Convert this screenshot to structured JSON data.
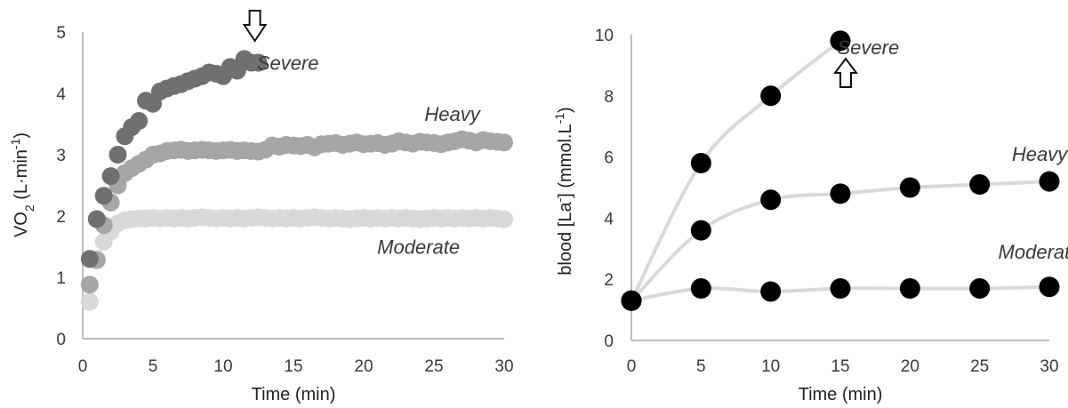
{
  "chart_data": [
    {
      "type": "scatter",
      "title": "",
      "xlabel": "Time (min)",
      "ylabel_main": "VO",
      "ylabel_sub": "2",
      "ylabel_rest": " (L·min",
      "ylabel_sup": "-1",
      "ylabel_end": ")",
      "xlim": [
        0,
        30
      ],
      "ylim": [
        0,
        5
      ],
      "xticks": [
        0,
        5,
        10,
        15,
        20,
        25,
        30
      ],
      "yticks": [
        0,
        1,
        2,
        3,
        4,
        5
      ],
      "grid": false,
      "legend": "none",
      "annotation": "down-arrow-at-end-of-severe",
      "series": [
        {
          "name": "Moderate",
          "color": "#d9d9d9",
          "label_x": 23.9,
          "label_y": 1.5,
          "x": [
            0.5,
            1.0,
            1.5,
            2.0,
            2.5,
            3.0,
            3.5,
            4.0,
            4.5,
            5.0,
            5.5,
            6.0,
            6.5,
            7.0,
            7.5,
            8.0,
            8.5,
            9.0,
            9.5,
            10.0,
            10.5,
            11.0,
            11.5,
            12.0,
            12.5,
            13.0,
            13.5,
            14.0,
            14.5,
            15.0,
            15.5,
            16.0,
            16.5,
            17.0,
            17.5,
            18.0,
            18.5,
            19.0,
            19.5,
            20.0,
            20.5,
            21.0,
            21.5,
            22.0,
            22.5,
            23.0,
            23.5,
            24.0,
            24.5,
            25.0,
            25.5,
            26.0,
            26.5,
            27.0,
            27.5,
            28.0,
            28.5,
            29.0,
            29.5,
            30.0
          ],
          "y": [
            0.6,
            1.3,
            1.58,
            1.75,
            1.88,
            1.93,
            1.95,
            1.96,
            1.96,
            1.97,
            1.96,
            1.97,
            1.96,
            1.97,
            1.96,
            1.97,
            1.98,
            1.97,
            1.96,
            1.97,
            1.96,
            1.97,
            1.96,
            1.97,
            1.98,
            1.97,
            1.96,
            1.97,
            1.96,
            1.97,
            1.96,
            1.97,
            1.98,
            1.97,
            1.96,
            1.97,
            1.96,
            1.95,
            1.96,
            1.97,
            1.96,
            1.97,
            1.96,
            1.97,
            1.96,
            1.97,
            1.96,
            1.95,
            1.96,
            1.97,
            1.96,
            1.97,
            1.96,
            1.97,
            1.96,
            1.97,
            1.96,
            1.97,
            1.96,
            1.95
          ]
        },
        {
          "name": "Heavy",
          "color": "#a6a6a6",
          "label_x": 26.3,
          "label_y": 3.67,
          "x": [
            0.5,
            1.0,
            1.5,
            2.0,
            2.5,
            3.0,
            3.5,
            4.0,
            4.5,
            5.0,
            5.5,
            6.0,
            6.5,
            7.0,
            7.5,
            8.0,
            8.5,
            9.0,
            9.5,
            10.0,
            10.5,
            11.0,
            11.5,
            12.0,
            12.5,
            13.0,
            13.5,
            14.0,
            14.5,
            15.0,
            15.5,
            16.0,
            16.5,
            17.0,
            17.5,
            18.0,
            18.5,
            19.0,
            19.5,
            20.0,
            20.5,
            21.0,
            21.5,
            22.0,
            22.5,
            23.0,
            23.5,
            24.0,
            24.5,
            25.0,
            25.5,
            26.0,
            26.5,
            27.0,
            27.5,
            28.0,
            28.5,
            29.0,
            29.5,
            30.0
          ],
          "y": [
            0.88,
            1.28,
            1.85,
            2.22,
            2.5,
            2.7,
            2.78,
            2.85,
            2.92,
            3.0,
            3.02,
            3.06,
            3.07,
            3.08,
            3.06,
            3.07,
            3.08,
            3.07,
            3.06,
            3.07,
            3.08,
            3.06,
            3.07,
            3.06,
            3.05,
            3.08,
            3.15,
            3.13,
            3.16,
            3.15,
            3.14,
            3.16,
            3.12,
            3.17,
            3.18,
            3.19,
            3.16,
            3.18,
            3.2,
            3.17,
            3.18,
            3.19,
            3.16,
            3.18,
            3.22,
            3.2,
            3.18,
            3.21,
            3.2,
            3.19,
            3.17,
            3.2,
            3.22,
            3.25,
            3.23,
            3.2,
            3.24,
            3.22,
            3.21,
            3.2
          ]
        },
        {
          "name": "Severe",
          "color": "#707070",
          "label_x": 14.6,
          "label_y": 4.5,
          "x": [
            0.5,
            1.0,
            1.5,
            2.0,
            2.5,
            3.0,
            3.5,
            4.0,
            4.5,
            5.0,
            5.5,
            6.0,
            6.5,
            7.0,
            7.5,
            8.0,
            8.5,
            9.0,
            9.5,
            10.0,
            10.5,
            11.0,
            11.5,
            12.0,
            12.5
          ],
          "y": [
            1.3,
            1.95,
            2.33,
            2.65,
            3.0,
            3.3,
            3.45,
            3.55,
            3.88,
            3.83,
            4.03,
            4.08,
            4.12,
            4.15,
            4.2,
            4.24,
            4.28,
            4.34,
            4.32,
            4.28,
            4.43,
            4.37,
            4.56,
            4.5,
            4.5
          ]
        }
      ]
    },
    {
      "type": "line",
      "title": "",
      "xlabel": "Time (min)",
      "ylabel_main": "blood [La",
      "ylabel_sup1": "-",
      "ylabel_mid": "] (mmol.L",
      "ylabel_sup2": "-1",
      "ylabel_end": ")",
      "xlim": [
        0,
        30
      ],
      "ylim": [
        0,
        10
      ],
      "xticks": [
        0,
        5,
        10,
        15,
        20,
        25,
        30
      ],
      "yticks": [
        0,
        2,
        4,
        6,
        8,
        10
      ],
      "grid": false,
      "legend": "none",
      "annotation": "up-arrow-below-severe-endpoint",
      "series": [
        {
          "name": "Moderate",
          "label_x": 29.3,
          "label_y": 2.9,
          "x": [
            0,
            5,
            10,
            15,
            20,
            25,
            30
          ],
          "y": [
            1.3,
            1.7,
            1.6,
            1.7,
            1.7,
            1.7,
            1.75
          ]
        },
        {
          "name": "Heavy",
          "label_x": 29.3,
          "label_y": 6.1,
          "x": [
            0,
            5,
            10,
            15,
            20,
            25,
            30
          ],
          "y": [
            1.3,
            3.6,
            4.6,
            4.8,
            5.0,
            5.1,
            5.2
          ]
        },
        {
          "name": "Severe",
          "label_x": 17.0,
          "label_y": 9.6,
          "x": [
            0,
            5,
            10,
            15
          ],
          "y": [
            1.3,
            5.8,
            8.0,
            9.8
          ]
        }
      ]
    }
  ]
}
